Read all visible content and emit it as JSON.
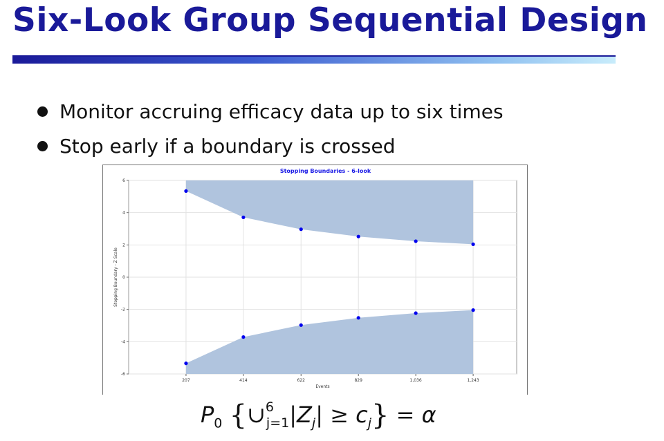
{
  "slide": {
    "title": "Six-Look Group Sequential Design",
    "bullets": [
      "Monitor accruing efficacy data up to six times",
      "Stop early if a boundary is crossed"
    ]
  },
  "formula": {
    "lhs": "P",
    "lhs_sub": "0",
    "union": "∪",
    "union_sup": "6",
    "union_sub": "j=1",
    "abs_var": "Z",
    "abs_sub": "j",
    "geq": "≥",
    "rhs_var": "c",
    "rhs_sub": "j",
    "equals": "=",
    "alpha": "α"
  },
  "chart_data": {
    "type": "area",
    "title": "Stopping Boundaries - 6-look",
    "xlabel": "Events",
    "ylabel": "Stopping Boundary - Z Scale",
    "x": [
      207,
      414,
      622,
      829,
      1036,
      1243
    ],
    "x_tick_labels": [
      "207",
      "414",
      "622",
      "829",
      "1,036",
      "1,243"
    ],
    "xlim": [
      0,
      1400
    ],
    "ylim": [
      -6,
      6
    ],
    "y_ticks": [
      -6,
      -4,
      -2,
      0,
      2,
      4,
      6
    ],
    "y_tick_labels": [
      "-6",
      "-4",
      "-2",
      "0",
      "2",
      "4",
      "6"
    ],
    "series": [
      {
        "values": [
          5.34,
          3.71,
          2.97,
          2.52,
          2.23,
          2.04
        ]
      },
      {
        "values": [
          -5.34,
          -3.71,
          -2.97,
          -2.52,
          -2.23,
          -2.04
        ]
      }
    ],
    "grid": true,
    "fill_color": "#b0c4de",
    "point_color": "#0000ee",
    "title_color": "#1a1ae6"
  }
}
